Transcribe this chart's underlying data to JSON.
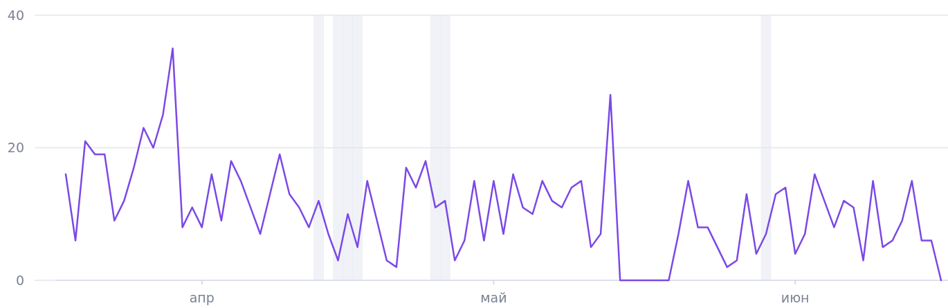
{
  "chart_data": {
    "type": "line",
    "categories": [
      null,
      null,
      null,
      null,
      null,
      null,
      null,
      null,
      null,
      null,
      null,
      null,
      null,
      null,
      "апр",
      null,
      null,
      null,
      null,
      null,
      null,
      null,
      null,
      null,
      null,
      null,
      null,
      null,
      null,
      null,
      null,
      null,
      null,
      null,
      null,
      null,
      null,
      null,
      null,
      null,
      null,
      null,
      null,
      null,
      "май",
      null,
      null,
      null,
      null,
      null,
      null,
      null,
      null,
      null,
      null,
      null,
      null,
      null,
      null,
      null,
      null,
      null,
      null,
      null,
      null,
      null,
      null,
      null,
      null,
      null,
      null,
      null,
      null,
      null,
      null,
      "июн",
      null,
      null,
      null,
      null,
      null,
      null,
      null,
      null,
      null,
      null,
      null,
      null,
      null,
      null,
      null
    ],
    "series": [
      {
        "color": "#7b48e6",
        "values": [
          16,
          6,
          21,
          19,
          19,
          9,
          12,
          17,
          23,
          20,
          25,
          35,
          8,
          11,
          8,
          16,
          9,
          18,
          15,
          11,
          7,
          13,
          19,
          13,
          11,
          8,
          12,
          7,
          3,
          10,
          5,
          15,
          9,
          3,
          2,
          17,
          14,
          18,
          11,
          12,
          3,
          6,
          15,
          6,
          15,
          7,
          16,
          11,
          10,
          15,
          12,
          11,
          14,
          15,
          5,
          7,
          28,
          0,
          0,
          0,
          0,
          0,
          0,
          7,
          15,
          8,
          8,
          5,
          2,
          3,
          13,
          4,
          7,
          13,
          14,
          4,
          7,
          16,
          12,
          8,
          12,
          11,
          3,
          15,
          5,
          6,
          9,
          15,
          6,
          6,
          0
        ]
      }
    ],
    "ylim": [
      0,
      40
    ],
    "yticks": [
      0,
      20,
      40
    ],
    "grid": "y",
    "marker": "none",
    "line_style": "solid"
  }
}
